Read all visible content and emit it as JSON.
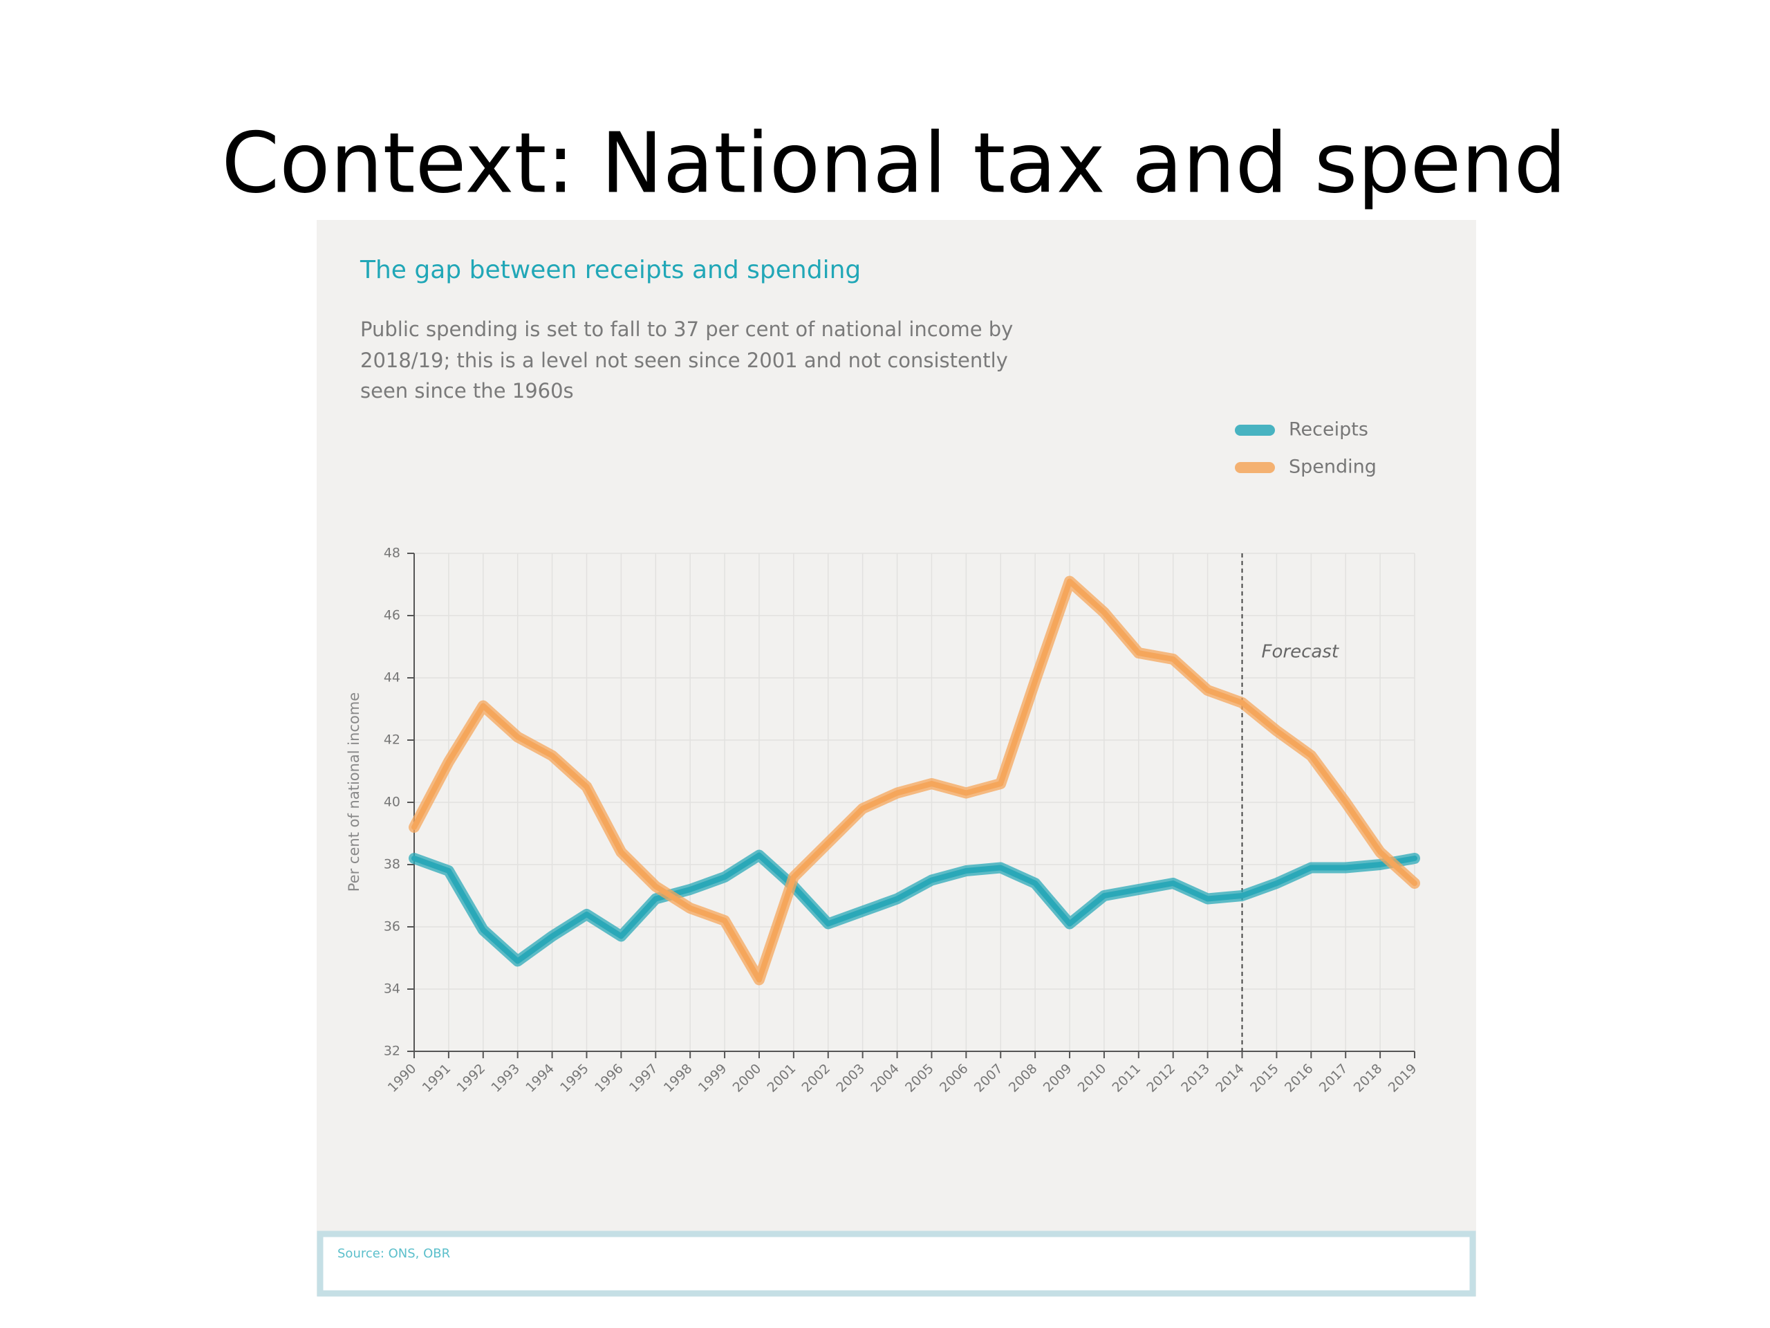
{
  "header": {
    "title": "Context: National tax and spend"
  },
  "chart_data": {
    "type": "line",
    "title": "The gap between receipts and spending",
    "subtitle": [
      "Public spending is set to fall to 37 per cent of national income by",
      "2018/19; this is a level not seen since 2001 and not consistently",
      "seen since the 1960s"
    ],
    "y_label": "Per cent of national income",
    "categories": [
      "1990",
      "1991",
      "1992",
      "1993",
      "1994",
      "1995",
      "1996",
      "1997",
      "1998",
      "1999",
      "2000",
      "2001",
      "2002",
      "2003",
      "2004",
      "2005",
      "2006",
      "2007",
      "2008",
      "2009",
      "2010",
      "2011",
      "2012",
      "2013",
      "2014",
      "2015",
      "2016",
      "2017",
      "2018",
      "2019"
    ],
    "series": [
      {
        "name": "Receipts",
        "color": "#2aa8b8",
        "values": [
          38.2,
          37.8,
          35.9,
          34.9,
          35.7,
          36.4,
          35.7,
          36.9,
          37.2,
          37.6,
          38.3,
          37.3,
          36.1,
          36.5,
          36.9,
          37.5,
          37.8,
          37.9,
          37.4,
          36.1,
          37.0,
          37.2,
          37.4,
          36.9,
          37.0,
          37.4,
          37.9,
          37.9,
          38.0,
          38.2
        ]
      },
      {
        "name": "Spending",
        "color": "#f5a65b",
        "values": [
          39.2,
          41.3,
          43.1,
          42.1,
          41.5,
          40.5,
          38.4,
          37.3,
          36.6,
          36.2,
          34.3,
          37.6,
          38.7,
          39.8,
          40.3,
          40.6,
          40.3,
          40.6,
          43.9,
          47.1,
          46.1,
          44.8,
          44.6,
          43.6,
          43.2,
          42.3,
          41.5,
          40.0,
          38.4,
          37.4
        ]
      }
    ],
    "ylim": [
      32,
      48
    ],
    "yticks": [
      32,
      34,
      36,
      38,
      40,
      42,
      44,
      46,
      48
    ],
    "grid": true,
    "annotation": {
      "text": "Forecast",
      "x": "2014"
    },
    "source": "Source: ONS, OBR"
  }
}
